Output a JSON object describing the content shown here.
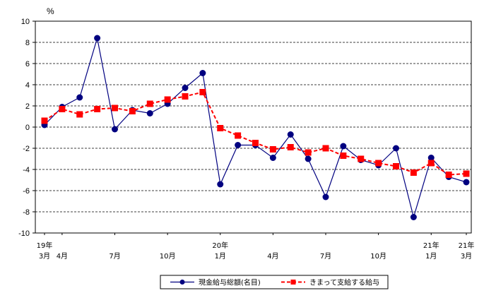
{
  "chart_data": {
    "type": "line",
    "unit_label": "%",
    "ylim": [
      -10,
      10
    ],
    "y_ticks": [
      -10,
      -8,
      -6,
      -4,
      -2,
      0,
      2,
      4,
      6,
      8,
      10
    ],
    "grid": "horizontal dashed",
    "legend_position": "bottom-right",
    "x_labels": [
      {
        "i": 0,
        "line1": "19年",
        "line2": "3月"
      },
      {
        "i": 1,
        "line1": "",
        "line2": "4月"
      },
      {
        "i": 4,
        "line1": "",
        "line2": "7月"
      },
      {
        "i": 7,
        "line1": "",
        "line2": "10月"
      },
      {
        "i": 10,
        "line1": "20年",
        "line2": "1月"
      },
      {
        "i": 13,
        "line1": "",
        "line2": "4月"
      },
      {
        "i": 16,
        "line1": "",
        "line2": "7月"
      },
      {
        "i": 19,
        "line1": "",
        "line2": "10月"
      },
      {
        "i": 22,
        "line1": "21年",
        "line2": "1月"
      },
      {
        "i": 24,
        "line1": "21年",
        "line2": "3月"
      }
    ],
    "series": [
      {
        "name": "現金給与総額(名目)",
        "color": "#000080",
        "line_style": "solid",
        "marker": "circle",
        "values": [
          0.2,
          1.9,
          2.8,
          8.4,
          -0.2,
          1.6,
          1.3,
          2.2,
          3.7,
          5.1,
          -5.4,
          -1.7,
          -1.7,
          -2.9,
          -0.7,
          -3.0,
          -6.6,
          -1.8,
          -3.1,
          -3.6,
          -2.0,
          -8.5,
          -2.9,
          -4.7,
          -5.2
        ]
      },
      {
        "name": "きまって支給する給与",
        "color": "#ff0000",
        "line_style": "dashed",
        "marker": "square",
        "values": [
          0.6,
          1.7,
          1.2,
          1.7,
          1.8,
          1.5,
          2.2,
          2.6,
          2.9,
          3.3,
          -0.1,
          -0.8,
          -1.5,
          -2.1,
          -1.9,
          -2.4,
          -2.0,
          -2.7,
          -3.0,
          -3.4,
          -3.7,
          -4.3,
          -3.4,
          -4.5,
          -4.4
        ]
      }
    ]
  }
}
